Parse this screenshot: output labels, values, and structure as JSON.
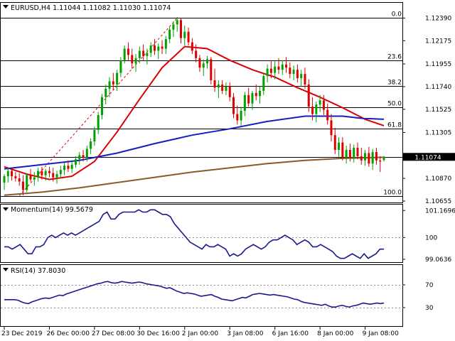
{
  "chart_data": [
    {
      "type": "candlestick",
      "title": "EURUSD,H4  1.11044 1.11082 1.11030 1.11074",
      "ylim": [
        1.10655,
        1.1244
      ],
      "y_ticks": [
        "1.12390",
        "1.12175",
        "1.11955",
        "1.11740",
        "1.11525",
        "1.11305",
        "1.11074",
        "1.10870",
        "1.10655"
      ],
      "last_price_label": "1.11074",
      "x_tick_labels": [
        "23 Dec 2019",
        "26 Dec 00:00",
        "27 Dec 08:00",
        "30 Dec 16:00",
        "2 Jan 00:00",
        "3 Jan 08:00",
        "6 Jan 16:00",
        "8 Jan 00:00",
        "9 Jan 08:00"
      ],
      "x_tick_bars": [
        0,
        12,
        24,
        36,
        48,
        60,
        72,
        84,
        96
      ],
      "num_bars": 102,
      "fibonacci": {
        "levels": [
          {
            "label": "0.0",
            "price": 1.1239
          },
          {
            "label": "23.6",
            "price": 1.1199
          },
          {
            "label": "38.2",
            "price": 1.11745
          },
          {
            "label": "50.0",
            "price": 1.11545
          },
          {
            "label": "61.8",
            "price": 1.11345
          },
          {
            "label": "100.0",
            "price": 1.10705
          }
        ],
        "extra_line_price": 1.11074,
        "trend_from": {
          "bar": 4,
          "price": 1.10705
        },
        "trend_to": {
          "bar": 46,
          "price": 1.1239
        }
      },
      "series": [
        {
          "name": "candles",
          "color_up": "#00a000",
          "color_down": "#dd0000",
          "values": [
            [
              1.1083,
              1.1091,
              1.1076,
              1.1089
            ],
            [
              1.1089,
              1.1097,
              1.1083,
              1.1094
            ],
            [
              1.1094,
              1.1097,
              1.1085,
              1.1089
            ],
            [
              1.1089,
              1.1093,
              1.1084,
              1.1087
            ],
            [
              1.1087,
              1.1092,
              1.108,
              1.1084
            ],
            [
              1.1084,
              1.109,
              1.1071,
              1.1076
            ],
            [
              1.1076,
              1.1092,
              1.1074,
              1.109
            ],
            [
              1.109,
              1.1096,
              1.1084,
              1.1086
            ],
            [
              1.1086,
              1.1093,
              1.108,
              1.1088
            ],
            [
              1.1088,
              1.1097,
              1.1084,
              1.1094
            ],
            [
              1.1094,
              1.1098,
              1.1086,
              1.109
            ],
            [
              1.109,
              1.1096,
              1.1085,
              1.1094
            ],
            [
              1.1094,
              1.1098,
              1.1088,
              1.1092
            ],
            [
              1.1092,
              1.1097,
              1.1084,
              1.1088
            ],
            [
              1.1088,
              1.1094,
              1.1082,
              1.1091
            ],
            [
              1.1091,
              1.1099,
              1.1087,
              1.1095
            ],
            [
              1.1095,
              1.1102,
              1.109,
              1.1099
            ],
            [
              1.1099,
              1.1104,
              1.1093,
              1.1096
            ],
            [
              1.1096,
              1.1103,
              1.1092,
              1.11
            ],
            [
              1.11,
              1.1108,
              1.1097,
              1.1105
            ],
            [
              1.1105,
              1.1112,
              1.11,
              1.1109
            ],
            [
              1.1109,
              1.1114,
              1.1103,
              1.1107
            ],
            [
              1.1107,
              1.1118,
              1.1103,
              1.1115
            ],
            [
              1.1115,
              1.1125,
              1.111,
              1.1122
            ],
            [
              1.1122,
              1.1136,
              1.1118,
              1.1133
            ],
            [
              1.1133,
              1.115,
              1.1129,
              1.1147
            ],
            [
              1.1147,
              1.1167,
              1.1143,
              1.1164
            ],
            [
              1.1164,
              1.1176,
              1.1157,
              1.1172
            ],
            [
              1.1172,
              1.1183,
              1.1164,
              1.1179
            ],
            [
              1.1179,
              1.1187,
              1.1171,
              1.1176
            ],
            [
              1.1176,
              1.119,
              1.117,
              1.1187
            ],
            [
              1.1187,
              1.1202,
              1.1183,
              1.1199
            ],
            [
              1.1199,
              1.1213,
              1.1196,
              1.121
            ],
            [
              1.121,
              1.1216,
              1.1199,
              1.1204
            ],
            [
              1.1204,
              1.121,
              1.1191,
              1.1196
            ],
            [
              1.1196,
              1.1205,
              1.1188,
              1.1201
            ],
            [
              1.1201,
              1.1212,
              1.1196,
              1.1208
            ],
            [
              1.1208,
              1.1214,
              1.1199,
              1.1203
            ],
            [
              1.1203,
              1.121,
              1.1195,
              1.1206
            ],
            [
              1.1206,
              1.1216,
              1.1202,
              1.1213
            ],
            [
              1.1213,
              1.1219,
              1.1204,
              1.1208
            ],
            [
              1.1208,
              1.1215,
              1.12,
              1.1212
            ],
            [
              1.1212,
              1.1218,
              1.1205,
              1.121
            ],
            [
              1.121,
              1.1222,
              1.1205,
              1.1219
            ],
            [
              1.1219,
              1.1231,
              1.1215,
              1.1228
            ],
            [
              1.1228,
              1.1236,
              1.1221,
              1.1233
            ],
            [
              1.1233,
              1.124,
              1.1226,
              1.1237
            ],
            [
              1.1237,
              1.1239,
              1.1215,
              1.122
            ],
            [
              1.122,
              1.1232,
              1.1213,
              1.1226
            ],
            [
              1.1226,
              1.123,
              1.1213,
              1.1216
            ],
            [
              1.1216,
              1.122,
              1.1205,
              1.1208
            ],
            [
              1.1208,
              1.1214,
              1.1197,
              1.1201
            ],
            [
              1.1201,
              1.1204,
              1.1188,
              1.1192
            ],
            [
              1.1192,
              1.12,
              1.1184,
              1.1196
            ],
            [
              1.1196,
              1.1203,
              1.1191,
              1.12
            ],
            [
              1.12,
              1.1202,
              1.1176,
              1.118
            ],
            [
              1.118,
              1.1191,
              1.1169,
              1.1173
            ],
            [
              1.1173,
              1.118,
              1.1163,
              1.1176
            ],
            [
              1.1176,
              1.118,
              1.1167,
              1.117
            ],
            [
              1.117,
              1.1178,
              1.1166,
              1.1174
            ],
            [
              1.1174,
              1.1178,
              1.116,
              1.1164
            ],
            [
              1.1164,
              1.1168,
              1.1144,
              1.1148
            ],
            [
              1.1148,
              1.1156,
              1.1138,
              1.1142
            ],
            [
              1.1142,
              1.1155,
              1.1137,
              1.1151
            ],
            [
              1.1151,
              1.1169,
              1.1146,
              1.1166
            ],
            [
              1.1166,
              1.1173,
              1.1155,
              1.1158
            ],
            [
              1.1158,
              1.117,
              1.1152,
              1.1168
            ],
            [
              1.1168,
              1.1176,
              1.1161,
              1.1165
            ],
            [
              1.1165,
              1.1174,
              1.1158,
              1.117
            ],
            [
              1.117,
              1.1187,
              1.1166,
              1.1184
            ],
            [
              1.1184,
              1.1195,
              1.1178,
              1.1191
            ],
            [
              1.1191,
              1.1199,
              1.1182,
              1.1187
            ],
            [
              1.1187,
              1.1198,
              1.1181,
              1.1193
            ],
            [
              1.1193,
              1.1201,
              1.1186,
              1.119
            ],
            [
              1.119,
              1.1199,
              1.1185,
              1.1195
            ],
            [
              1.1195,
              1.1202,
              1.1187,
              1.1192
            ],
            [
              1.1192,
              1.1197,
              1.1182,
              1.1186
            ],
            [
              1.1186,
              1.1194,
              1.118,
              1.119
            ],
            [
              1.119,
              1.1195,
              1.1178,
              1.1182
            ],
            [
              1.1182,
              1.119,
              1.1174,
              1.1186
            ],
            [
              1.1186,
              1.1192,
              1.1172,
              1.1176
            ],
            [
              1.1176,
              1.1181,
              1.115,
              1.1155
            ],
            [
              1.1155,
              1.1164,
              1.1142,
              1.1148
            ],
            [
              1.1148,
              1.116,
              1.114,
              1.1157
            ],
            [
              1.1157,
              1.1166,
              1.115,
              1.1161
            ],
            [
              1.1161,
              1.1166,
              1.1147,
              1.1152
            ],
            [
              1.1152,
              1.1158,
              1.1138,
              1.1142
            ],
            [
              1.1142,
              1.1148,
              1.1122,
              1.1128
            ],
            [
              1.1128,
              1.1135,
              1.111,
              1.1114
            ],
            [
              1.1114,
              1.1126,
              1.1106,
              1.1121
            ],
            [
              1.1121,
              1.1126,
              1.1104,
              1.1107
            ],
            [
              1.1107,
              1.1118,
              1.1101,
              1.1114
            ],
            [
              1.1114,
              1.112,
              1.1103,
              1.1107
            ],
            [
              1.1107,
              1.1119,
              1.1102,
              1.1116
            ],
            [
              1.1116,
              1.1121,
              1.1105,
              1.1108
            ],
            [
              1.1108,
              1.1116,
              1.11,
              1.1104
            ],
            [
              1.1104,
              1.1114,
              1.1099,
              1.1111
            ],
            [
              1.1111,
              1.1117,
              1.1098,
              1.1101
            ],
            [
              1.1101,
              1.1115,
              1.1095,
              1.1112
            ],
            [
              1.1112,
              1.1116,
              1.11,
              1.1104
            ],
            [
              1.1104,
              1.1108,
              1.1093,
              1.1103
            ],
            [
              1.11044,
              1.11082,
              1.1103,
              1.11074
            ]
          ]
        },
        {
          "name": "sma-short",
          "color": "#dd0000",
          "bars": [
            0,
            6,
            12,
            18,
            24,
            30,
            36,
            42,
            48,
            54,
            60,
            66,
            72,
            78,
            84,
            90,
            96,
            101
          ],
          "values": [
            1.1098,
            1.1091,
            1.1086,
            1.1089,
            1.1103,
            1.1131,
            1.1162,
            1.1192,
            1.1212,
            1.121,
            1.1199,
            1.119,
            1.1183,
            1.1173,
            1.1164,
            1.1154,
            1.1143,
            1.1137
          ]
        },
        {
          "name": "sma-mid",
          "color": "#1020c0",
          "bars": [
            0,
            10,
            20,
            30,
            40,
            50,
            60,
            70,
            80,
            90,
            95,
            101
          ],
          "values": [
            1.1096,
            1.11,
            1.1104,
            1.1111,
            1.112,
            1.1128,
            1.1134,
            1.1141,
            1.1146,
            1.1146,
            1.1144,
            1.1143
          ]
        },
        {
          "name": "sma-long",
          "color": "#8b5a2b",
          "bars": [
            0,
            10,
            20,
            30,
            40,
            50,
            60,
            70,
            80,
            90,
            101
          ],
          "values": [
            1.1071,
            1.1074,
            1.1078,
            1.1083,
            1.1088,
            1.1093,
            1.1097,
            1.1101,
            1.1104,
            1.1106,
            1.1107
          ]
        }
      ]
    },
    {
      "type": "line",
      "title": "Momentum(14) 99.5679",
      "ylim": [
        99.0,
        101.3
      ],
      "y_ticks": [
        "101.1696",
        "100",
        "99.0636"
      ],
      "y_tick_values": [
        101.1696,
        100,
        99.0636
      ],
      "reference_line": 100,
      "series": [
        {
          "name": "Momentum(14)",
          "color": "#1a1a8c",
          "values": [
            99.6,
            99.6,
            99.5,
            99.6,
            99.7,
            99.5,
            99.3,
            99.3,
            99.6,
            99.6,
            99.7,
            100.0,
            100.1,
            100.0,
            100.1,
            100.2,
            100.1,
            100.2,
            100.1,
            100.2,
            100.3,
            100.4,
            100.5,
            100.6,
            100.7,
            101.0,
            101.1,
            100.8,
            100.8,
            101.0,
            101.1,
            101.1,
            101.1,
            101.1,
            101.2,
            101.1,
            101.1,
            101.2,
            101.2,
            101.1,
            101.0,
            101.0,
            100.9,
            100.6,
            100.4,
            100.2,
            100.0,
            99.8,
            99.7,
            99.6,
            99.5,
            99.7,
            99.6,
            99.6,
            99.7,
            99.6,
            99.5,
            99.2,
            99.3,
            99.2,
            99.3,
            99.5,
            99.6,
            99.7,
            99.6,
            99.5,
            99.6,
            99.8,
            99.9,
            99.9,
            100.0,
            100.1,
            100.0,
            99.9,
            99.7,
            99.8,
            99.9,
            99.8,
            99.6,
            99.6,
            99.7,
            99.6,
            99.5,
            99.4,
            99.2,
            99.1,
            99.1,
            99.2,
            99.3,
            99.2,
            99.1,
            99.3,
            99.1,
            99.2,
            99.3,
            99.5,
            99.5
          ]
        }
      ]
    },
    {
      "type": "line",
      "title": "RSI(14) 37.8030",
      "ylim": [
        0,
        100
      ],
      "y_ticks": [
        "70",
        "30"
      ],
      "y_tick_values": [
        70,
        30
      ],
      "series": [
        {
          "name": "RSI(14)",
          "color": "#1a1a8c",
          "values": [
            44,
            44,
            44,
            44,
            43,
            40,
            38,
            37,
            40,
            42,
            44,
            46,
            47,
            46,
            48,
            50,
            52,
            51,
            54,
            56,
            58,
            60,
            62,
            64,
            66,
            68,
            70,
            72,
            73,
            75,
            76,
            74,
            73,
            74,
            76,
            75,
            74,
            73,
            74,
            75,
            74,
            72,
            71,
            70,
            69,
            68,
            66,
            64,
            65,
            62,
            59,
            57,
            55,
            56,
            55,
            54,
            52,
            50,
            51,
            52,
            53,
            50,
            48,
            45,
            44,
            43,
            42,
            44,
            46,
            48,
            47,
            50,
            53,
            54,
            55,
            54,
            53,
            52,
            53,
            52,
            51,
            50,
            49,
            47,
            45,
            44,
            41,
            39,
            38,
            37,
            36,
            35,
            34,
            36,
            33,
            31,
            31,
            33,
            34,
            32,
            31,
            33,
            34,
            36,
            38,
            37,
            36,
            37,
            38,
            37,
            38
          ]
        }
      ]
    }
  ]
}
